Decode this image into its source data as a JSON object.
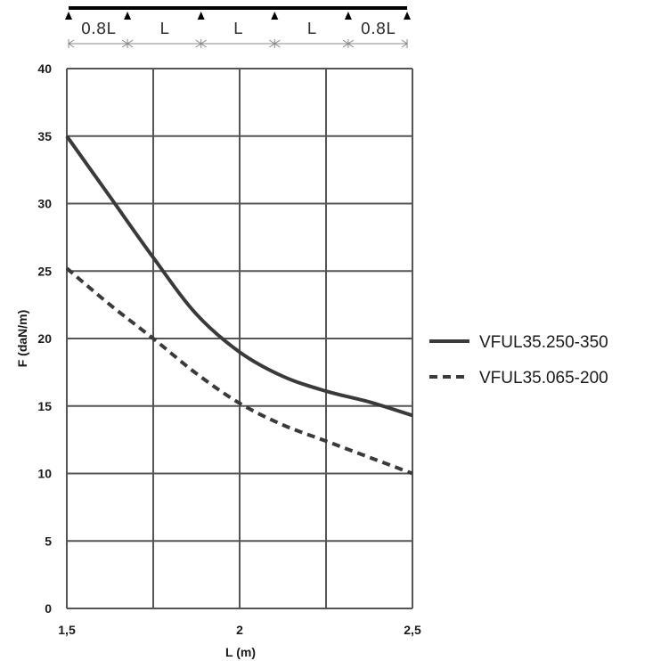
{
  "beam_diagram": {
    "spans": [
      "0.8L",
      "L",
      "L",
      "L",
      "0.8L"
    ],
    "line_color": "#000000",
    "dimension_color": "#888888"
  },
  "chart_data": {
    "type": "line",
    "xlabel": "L (m)",
    "ylabel": "F (daN/m)",
    "xlim": [
      1.5,
      2.5
    ],
    "ylim": [
      0,
      40
    ],
    "x_ticks": [
      "1,5",
      "2",
      "2,5"
    ],
    "y_ticks": [
      "0",
      "5",
      "10",
      "15",
      "20",
      "25",
      "30",
      "35",
      "40"
    ],
    "grid": true,
    "legend_position": "right",
    "series": [
      {
        "name": "VFUL35.250-350",
        "style": "solid",
        "color": "#3a3a3a",
        "points": [
          [
            1.5,
            35.0
          ],
          [
            1.625,
            30.5
          ],
          [
            1.75,
            26.0
          ],
          [
            1.875,
            21.8
          ],
          [
            2.0,
            19.0
          ],
          [
            2.125,
            17.2
          ],
          [
            2.25,
            16.1
          ],
          [
            2.375,
            15.3
          ],
          [
            2.5,
            14.3
          ]
        ]
      },
      {
        "name": "VFUL35.065-200",
        "style": "dashed",
        "color": "#3a3a3a",
        "points": [
          [
            1.5,
            25.2
          ],
          [
            1.625,
            22.5
          ],
          [
            1.75,
            20.0
          ],
          [
            1.875,
            17.4
          ],
          [
            2.0,
            15.2
          ],
          [
            2.125,
            13.6
          ],
          [
            2.25,
            12.4
          ],
          [
            2.375,
            11.2
          ],
          [
            2.5,
            10.0
          ]
        ]
      }
    ]
  }
}
